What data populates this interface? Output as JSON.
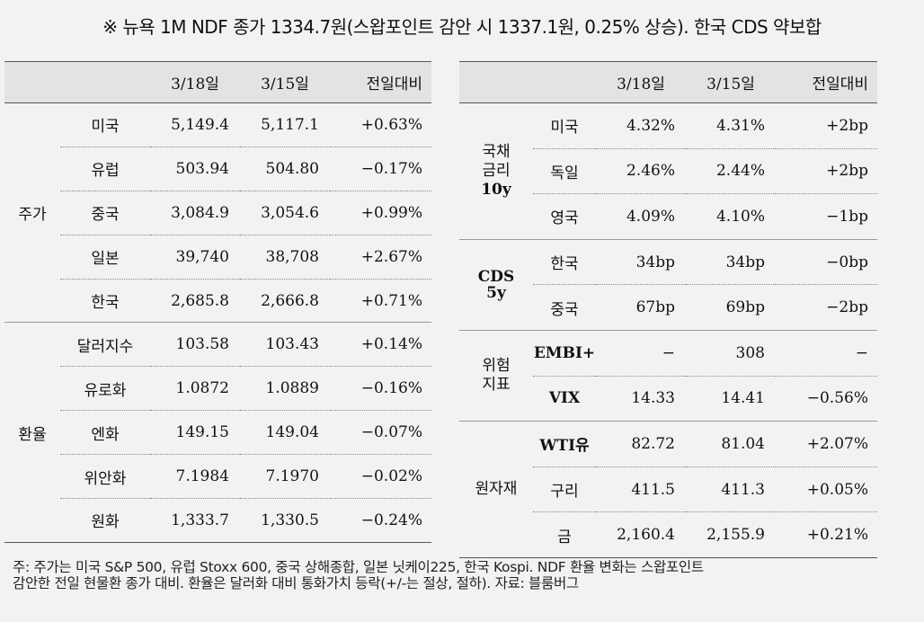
{
  "headline": "※ 뉴욕 1M NDF 종가 1334.7원(스왑포인트 감안 시 1337.1원, 0.25% 상승). 한국 CDS 약보합",
  "left": {
    "headers": [
      "",
      "",
      "3/18일",
      "3/15일",
      "전일대비"
    ],
    "groups": [
      {
        "label": "주가",
        "rows": [
          {
            "name": "미국",
            "a": "5,149.4",
            "b": "5,117.1",
            "c": "+0.63%"
          },
          {
            "name": "유럽",
            "a": "503.94",
            "b": "504.80",
            "c": "−0.17%"
          },
          {
            "name": "중국",
            "a": "3,084.9",
            "b": "3,054.6",
            "c": "+0.99%"
          },
          {
            "name": "일본",
            "a": "39,740",
            "b": "38,708",
            "c": "+2.67%"
          },
          {
            "name": "한국",
            "a": "2,685.8",
            "b": "2,666.8",
            "c": "+0.71%"
          }
        ]
      },
      {
        "label": "환율",
        "rows": [
          {
            "name": "달러지수",
            "a": "103.58",
            "b": "103.43",
            "c": "+0.14%"
          },
          {
            "name": "유로화",
            "a": "1.0872",
            "b": "1.0889",
            "c": "−0.16%"
          },
          {
            "name": "엔화",
            "a": "149.15",
            "b": "149.04",
            "c": "−0.07%"
          },
          {
            "name": "위안화",
            "a": "7.1984",
            "b": "7.1970",
            "c": "−0.02%"
          },
          {
            "name": "원화",
            "a": "1,333.7",
            "b": "1,330.5",
            "c": "−0.24%"
          }
        ]
      }
    ]
  },
  "right": {
    "headers": [
      "",
      "",
      "3/18일",
      "3/15일",
      "전일대비"
    ],
    "groups": [
      {
        "label_lines": [
          "국채",
          "금리",
          "10y"
        ],
        "rows": [
          {
            "name": "미국",
            "a": "4.32%",
            "b": "4.31%",
            "c": "+2bp"
          },
          {
            "name": "독일",
            "a": "2.46%",
            "b": "2.44%",
            "c": "+2bp"
          },
          {
            "name": "영국",
            "a": "4.09%",
            "b": "4.10%",
            "c": "−1bp"
          }
        ]
      },
      {
        "label_lines": [
          "CDS",
          "5y"
        ],
        "rows": [
          {
            "name": "한국",
            "a": "34bp",
            "b": "34bp",
            "c": "−0bp"
          },
          {
            "name": "중국",
            "a": "67bp",
            "b": "69bp",
            "c": "−2bp"
          }
        ]
      },
      {
        "label_lines": [
          "위험",
          "지표"
        ],
        "rows": [
          {
            "name": "EMBI+",
            "a": "−",
            "b": "308",
            "c": "−"
          },
          {
            "name": "VIX",
            "a": "14.33",
            "b": "14.41",
            "c": "−0.56%"
          }
        ]
      },
      {
        "label_lines": [
          "원자재"
        ],
        "rows": [
          {
            "name": "WTI유",
            "a": "82.72",
            "b": "81.04",
            "c": "+2.07%"
          },
          {
            "name": "구리",
            "a": "411.5",
            "b": "411.3",
            "c": "+0.05%"
          },
          {
            "name": "금",
            "a": "2,160.4",
            "b": "2,155.9",
            "c": "+0.21%"
          }
        ]
      }
    ]
  },
  "footnote": {
    "line1": "주: 주가는 미국 S&P 500, 유럽 Stoxx 600, 중국 상해종합, 일본 닛케이225, 한국 Kospi. NDF 환율 변화는 스왑포인트",
    "line2": "감안한 전일 현물환 종가 대비. 환율은 달러화 대비 통화가치 등락(+/-는 절상, 절하). 자료: 블룸버그"
  }
}
